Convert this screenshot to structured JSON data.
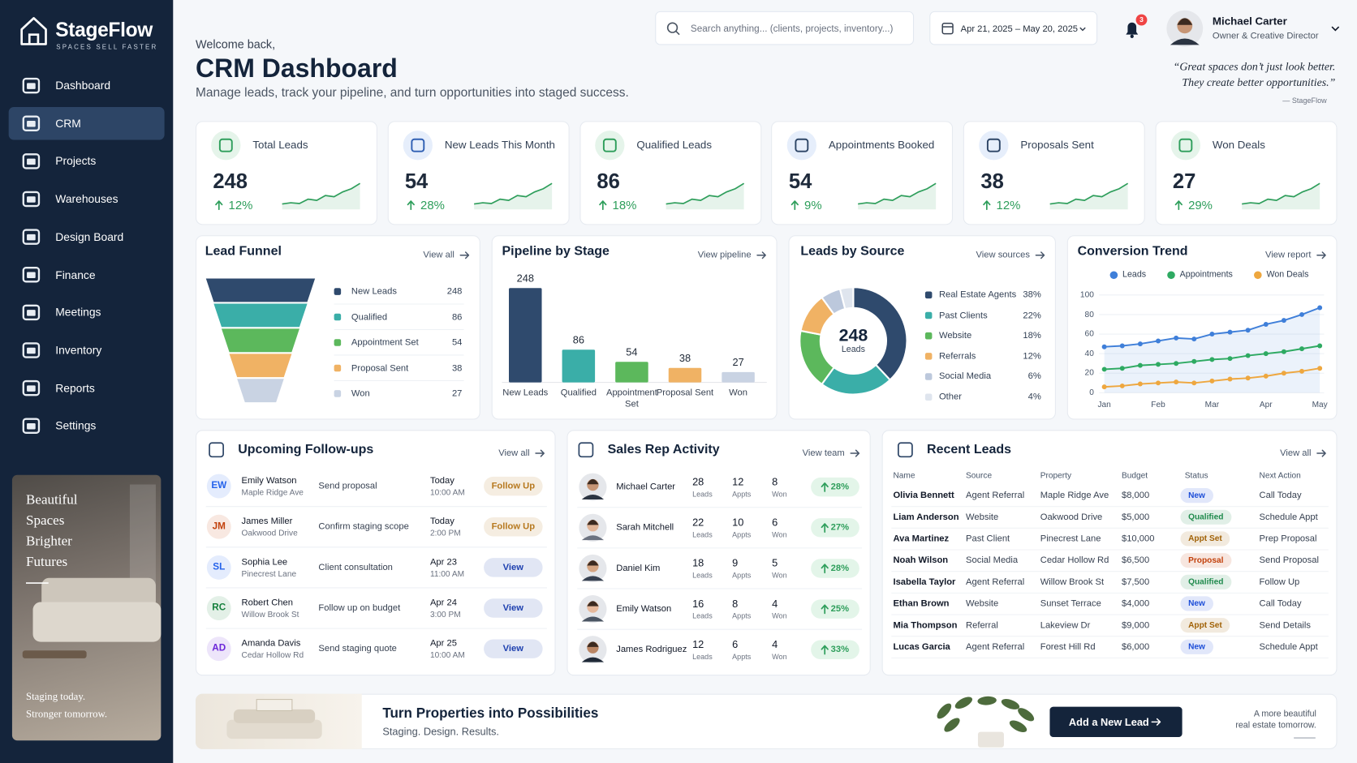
{
  "sidebar": {
    "brand": "StageFlow",
    "tagline": "SPACES SELL FASTER",
    "nav": [
      "Dashboard",
      "CRM",
      "Projects",
      "Warehouses",
      "Design Board",
      "Finance",
      "Meetings",
      "Inventory",
      "Reports",
      "Settings"
    ],
    "active": 1,
    "promo": {
      "lines": [
        "Beautiful",
        "Spaces",
        "Brighter",
        "Futures"
      ],
      "footer": [
        "Staging today.",
        "Stronger tomorrow."
      ]
    }
  },
  "header": {
    "greeting": "Welcome back,",
    "title": "CRM Dashboard",
    "subtitle": "Manage leads, track your pipeline, and turn opportunities into staged success.",
    "search": "Search anything... (clients, projects, inventory...)",
    "date_range": "Apr 21, 2025 – May 20, 2025",
    "notifications": 3,
    "user": {
      "name": "Michael Carter",
      "role": "Owner & Creative Director"
    },
    "quote": [
      "“Great spaces don’t just look better.",
      "They create better opportunities.”"
    ],
    "quote_source": "— StageFlow"
  },
  "kpis": [
    {
      "title": "Total Leads",
      "value": 248,
      "change": "12%"
    },
    {
      "title": "New Leads This Month",
      "value": 54,
      "change": "28%"
    },
    {
      "title": "Qualified Leads",
      "value": 86,
      "change": "18%"
    },
    {
      "title": "Appointments Booked",
      "value": 54,
      "change": "9%"
    },
    {
      "title": "Proposals Sent",
      "value": 38,
      "change": "12%"
    },
    {
      "title": "Won Deals",
      "value": 27,
      "change": "29%"
    }
  ],
  "lead_funnel": {
    "type": "funnel",
    "title": "Lead Funnel",
    "link": "View all",
    "categories": [
      "New Leads",
      "Qualified",
      "Appointment Set",
      "Proposal Sent",
      "Won"
    ],
    "values": [
      248,
      86,
      54,
      38,
      27
    ],
    "colors": [
      "#2f4a6d",
      "#3aaea8",
      "#5cb85c",
      "#f0b264",
      "#c9d3e3"
    ]
  },
  "pipeline": {
    "type": "bar",
    "title": "Pipeline by Stage",
    "link": "View pipeline",
    "categories": [
      "New Leads",
      "Qualified",
      "Appointment Set",
      "Proposal Sent",
      "Won"
    ],
    "values": [
      248,
      86,
      54,
      38,
      27
    ],
    "colors": [
      "#2f4a6d",
      "#3aaea8",
      "#5cb85c",
      "#f0b264",
      "#c9d3e3"
    ]
  },
  "leads_by_source": {
    "type": "pie",
    "title": "Leads by Source",
    "link": "View sources",
    "center_value": 248,
    "center_label": "Leads",
    "categories": [
      "Real Estate Agents",
      "Past Clients",
      "Website",
      "Referrals",
      "Social Media",
      "Other"
    ],
    "values": [
      38,
      22,
      18,
      12,
      6,
      4
    ],
    "value_labels": [
      "38%",
      "22%",
      "18%",
      "12%",
      "6%",
      "4%"
    ],
    "colors": [
      "#2f4a6d",
      "#3aaea8",
      "#5cb85c",
      "#f0b264",
      "#bcc8dc",
      "#dfe5ee"
    ]
  },
  "conversion_trend": {
    "type": "line",
    "title": "Conversion Trend",
    "link": "View report",
    "categories": [
      "Jan",
      null,
      null,
      "Feb",
      null,
      null,
      "Mar",
      null,
      null,
      "Apr",
      null,
      null,
      "May"
    ],
    "series": [
      {
        "name": "Leads",
        "color": "#3f7fd9",
        "values": [
          47,
          48,
          50,
          53,
          56,
          55,
          60,
          62,
          64,
          70,
          74,
          80,
          87
        ]
      },
      {
        "name": "Appointments",
        "color": "#2eaa62",
        "values": [
          24,
          25,
          28,
          29,
          30,
          32,
          34,
          35,
          38,
          40,
          42,
          45,
          48
        ]
      },
      {
        "name": "Won Deals",
        "color": "#eea73f",
        "values": [
          6,
          7,
          9,
          10,
          11,
          10,
          12,
          14,
          15,
          17,
          20,
          22,
          25
        ]
      }
    ],
    "ylim": [
      0,
      100
    ],
    "yticks": [
      0,
      20,
      40,
      60,
      80,
      100
    ],
    "grid": true
  },
  "follow_ups": {
    "title": "Upcoming Follow-ups",
    "link": "View all",
    "rows": [
      {
        "initials": "EW",
        "name": "Emily Watson",
        "place": "Maple Ridge Ave",
        "task": "Send proposal",
        "date": "Today",
        "time": "10:00 AM",
        "action": "Follow Up",
        "avatar_color": "#2563eb",
        "action_color": "#b7791f"
      },
      {
        "initials": "JM",
        "name": "James Miller",
        "place": "Oakwood Drive",
        "task": "Confirm staging scope",
        "date": "Today",
        "time": "2:00 PM",
        "action": "Follow Up",
        "avatar_color": "#c2410c",
        "action_color": "#b7791f"
      },
      {
        "initials": "SL",
        "name": "Sophia Lee",
        "place": "Pinecrest Lane",
        "task": "Client consultation",
        "date": "Apr 23",
        "time": "11:00 AM",
        "action": "View",
        "avatar_color": "#2563eb",
        "action_color": "#1e40af"
      },
      {
        "initials": "RC",
        "name": "Robert Chen",
        "place": "Willow Brook St",
        "task": "Follow up on budget",
        "date": "Apr 24",
        "time": "3:00 PM",
        "action": "View",
        "avatar_color": "#15803d",
        "action_color": "#1e40af"
      },
      {
        "initials": "AD",
        "name": "Amanda Davis",
        "place": "Cedar Hollow Rd",
        "task": "Send staging quote",
        "date": "Apr 25",
        "time": "10:00 AM",
        "action": "View",
        "avatar_color": "#6d28d9",
        "action_color": "#1e40af"
      }
    ]
  },
  "sales_reps": {
    "title": "Sales Rep Activity",
    "link": "View team",
    "units": [
      "Leads",
      "Appts",
      "Won"
    ],
    "rows": [
      {
        "name": "Michael Carter",
        "leads": 28,
        "appts": 12,
        "won": 8,
        "change": "28%"
      },
      {
        "name": "Sarah Mitchell",
        "leads": 22,
        "appts": 10,
        "won": 6,
        "change": "27%"
      },
      {
        "name": "Daniel Kim",
        "leads": 18,
        "appts": 9,
        "won": 5,
        "change": "28%"
      },
      {
        "name": "Emily Watson",
        "leads": 16,
        "appts": 8,
        "won": 4,
        "change": "25%"
      },
      {
        "name": "James Rodriguez",
        "leads": 12,
        "appts": 6,
        "won": 4,
        "change": "33%"
      }
    ]
  },
  "recent_leads": {
    "title": "Recent Leads",
    "link": "View all",
    "columns": [
      "Name",
      "Source",
      "Property",
      "Budget",
      "Status",
      "Next Action"
    ],
    "rows": [
      [
        "Olivia Bennett",
        "Agent Referral",
        "Maple Ridge Ave",
        "$8,000",
        "New",
        "Call Today"
      ],
      [
        "Liam Anderson",
        "Website",
        "Oakwood Drive",
        "$5,000",
        "Qualified",
        "Schedule Appt"
      ],
      [
        "Ava Martinez",
        "Past Client",
        "Pinecrest Lane",
        "$10,000",
        "Appt Set",
        "Prep Proposal"
      ],
      [
        "Noah Wilson",
        "Social Media",
        "Cedar Hollow Rd",
        "$6,500",
        "Proposal",
        "Send Proposal"
      ],
      [
        "Isabella Taylor",
        "Agent Referral",
        "Willow Brook St",
        "$7,500",
        "Qualified",
        "Follow Up"
      ],
      [
        "Ethan Brown",
        "Website",
        "Sunset Terrace",
        "$4,000",
        "New",
        "Call Today"
      ],
      [
        "Mia Thompson",
        "Referral",
        "Lakeview Dr",
        "$9,000",
        "Appt Set",
        "Send Details"
      ],
      [
        "Lucas Garcia",
        "Agent Referral",
        "Forest Hill Rd",
        "$6,000",
        "New",
        "Schedule Appt"
      ]
    ],
    "status_colors": [
      "#1d4ed8",
      "#1f8a4c",
      "#a16207",
      "#c2410c",
      "#1f8a4c",
      "#1d4ed8",
      "#a16207",
      "#1d4ed8"
    ]
  },
  "banner": {
    "title": "Turn Properties into Possibilities",
    "subtitle": "Staging. Design. Results.",
    "button": "Add a New Lead",
    "note": [
      "A more beautiful",
      "real estate tomorrow."
    ]
  }
}
